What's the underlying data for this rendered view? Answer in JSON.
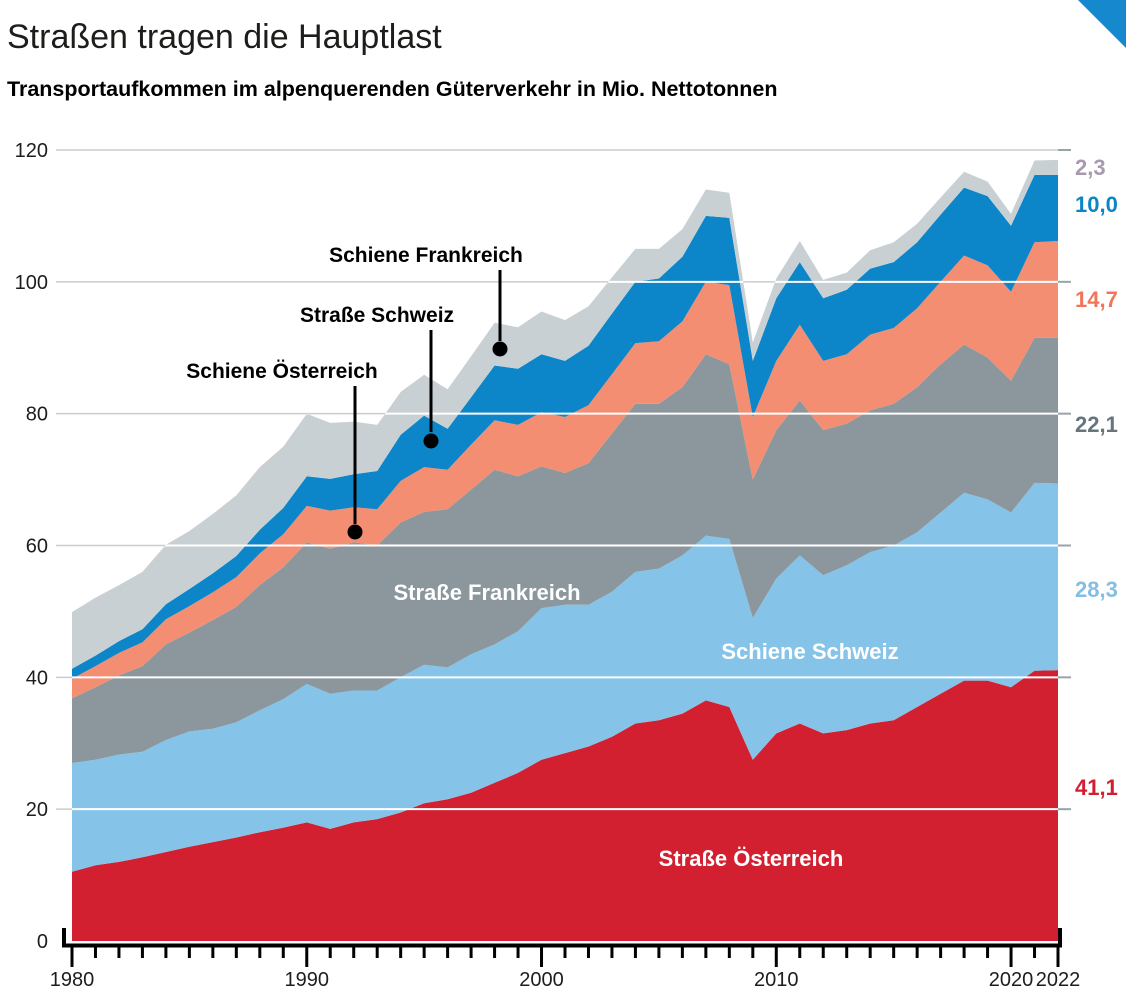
{
  "page": {
    "title": "Straßen tragen die Hauptlast",
    "subtitle": "Transportaufkommen im alpenquerenden Güterverkehr in Mio. Nettotonnen",
    "corner_accent_color": "#1688cd"
  },
  "chart_data": {
    "type": "area",
    "stacked": true,
    "title": "Straßen tragen die Hauptlast",
    "subtitle": "Transportaufkommen im alpenquerenden Güterverkehr in Mio. Nettotonnen",
    "unit": "Mio. Nettotonnen",
    "grid": "horizontal",
    "ylim": [
      0,
      120
    ],
    "xlim": [
      1980,
      2022
    ],
    "y_axis": {
      "ticks": [
        0,
        20,
        40,
        60,
        80,
        100,
        120
      ]
    },
    "x_axis": {
      "labeled_ticks": [
        1980,
        1990,
        2000,
        2010,
        2020,
        2022
      ],
      "minor_tick_step": 1
    },
    "x": [
      1980,
      1981,
      1982,
      1983,
      1984,
      1985,
      1986,
      1987,
      1988,
      1989,
      1990,
      1991,
      1992,
      1993,
      1994,
      1995,
      1996,
      1997,
      1998,
      1999,
      2000,
      2001,
      2002,
      2003,
      2004,
      2005,
      2006,
      2007,
      2008,
      2009,
      2010,
      2011,
      2012,
      2013,
      2014,
      2015,
      2016,
      2017,
      2018,
      2019,
      2020,
      2021,
      2022
    ],
    "series": [
      {
        "name": "Straße Österreich",
        "color": "#d22030",
        "label_color": "#d11f2f",
        "end_label": "41,1",
        "values": [
          10.5,
          11.5,
          12.0,
          12.7,
          13.5,
          14.3,
          15.0,
          15.7,
          16.5,
          17.2,
          18.0,
          17.0,
          18.0,
          18.5,
          19.5,
          20.9,
          21.5,
          22.5,
          24.0,
          25.5,
          27.5,
          28.5,
          29.5,
          31.0,
          33.0,
          33.5,
          34.5,
          36.5,
          35.5,
          27.5,
          31.5,
          33.0,
          31.5,
          32.0,
          33.0,
          33.5,
          35.5,
          37.5,
          39.5,
          39.5,
          38.5,
          41.0,
          41.1
        ]
      },
      {
        "name": "Schiene Schweiz",
        "color": "#85c3e8",
        "label_color": "#84bee3",
        "end_label": "28,3",
        "values": [
          16.5,
          16.0,
          16.3,
          16.0,
          17.0,
          17.5,
          17.2,
          17.5,
          18.5,
          19.5,
          21.0,
          20.5,
          20.0,
          19.5,
          20.5,
          21.0,
          20.0,
          21.0,
          21.0,
          21.5,
          23.0,
          22.5,
          21.5,
          22.0,
          23.0,
          23.0,
          24.0,
          25.0,
          25.5,
          21.5,
          23.5,
          25.5,
          24.0,
          25.0,
          26.0,
          26.5,
          26.5,
          27.5,
          28.5,
          27.5,
          26.5,
          28.5,
          28.3
        ]
      },
      {
        "name": "Straße Frankreich",
        "color": "#8b979c",
        "label_color": "#66767c",
        "end_label": "22,1",
        "values": [
          9.8,
          11.0,
          12.0,
          13.0,
          14.5,
          15.0,
          16.5,
          17.5,
          19.0,
          20.0,
          21.5,
          22.0,
          22.5,
          22.0,
          23.5,
          23.2,
          24.0,
          25.0,
          26.5,
          23.5,
          21.5,
          20.0,
          21.5,
          24.0,
          25.5,
          25.0,
          25.5,
          27.5,
          26.5,
          21.0,
          22.5,
          23.5,
          22.0,
          21.5,
          21.5,
          21.5,
          22.0,
          22.5,
          22.5,
          21.5,
          20.0,
          22.0,
          22.1
        ]
      },
      {
        "name": "Schiene Österreich",
        "color": "#f38e72",
        "label_color": "#f0765b",
        "end_label": "14,7",
        "values": [
          3.0,
          3.2,
          3.4,
          3.6,
          3.8,
          4.0,
          4.2,
          4.5,
          4.8,
          5.0,
          5.5,
          5.8,
          5.3,
          5.5,
          6.3,
          6.8,
          6.0,
          6.8,
          7.5,
          7.8,
          8.2,
          8.5,
          8.8,
          9.0,
          9.2,
          9.5,
          10.0,
          11.0,
          12.0,
          9.5,
          10.5,
          11.5,
          10.5,
          10.5,
          11.5,
          11.5,
          12.0,
          12.5,
          13.5,
          14.0,
          13.5,
          14.5,
          14.7
        ]
      },
      {
        "name": "Straße Schweiz",
        "color": "#0c86c8",
        "label_color": "#0d85c5",
        "end_label": "10,0",
        "values": [
          1.5,
          1.6,
          1.8,
          2.0,
          2.3,
          2.6,
          2.9,
          3.2,
          3.6,
          4.0,
          4.5,
          4.8,
          5.0,
          5.8,
          7.0,
          7.8,
          6.2,
          7.2,
          8.3,
          8.5,
          8.8,
          8.5,
          9.0,
          9.2,
          9.3,
          9.5,
          9.8,
          10.0,
          10.2,
          8.5,
          9.5,
          9.5,
          9.5,
          9.8,
          10.0,
          10.0,
          10.0,
          10.2,
          10.3,
          10.5,
          10.0,
          10.2,
          10.0
        ]
      },
      {
        "name": "Schiene Frankreich",
        "color": "#c9d0d3",
        "label_color": "#a89aae",
        "end_label": "2,3",
        "values": [
          8.6,
          8.8,
          8.5,
          8.7,
          9.0,
          8.8,
          9.0,
          9.2,
          9.5,
          9.3,
          9.5,
          8.5,
          8.0,
          7.0,
          6.5,
          6.2,
          6.0,
          6.2,
          6.5,
          6.3,
          6.5,
          6.2,
          6.0,
          5.5,
          5.0,
          4.5,
          4.2,
          4.0,
          3.8,
          2.8,
          3.0,
          3.2,
          2.8,
          2.6,
          2.8,
          3.0,
          2.8,
          2.6,
          2.4,
          2.2,
          1.8,
          2.2,
          2.3
        ]
      }
    ],
    "annotations": [
      {
        "text": "Schiene Österreich",
        "year": 1992,
        "value": 62.0
      },
      {
        "text": "Straße Schweiz",
        "year": 1995,
        "value": 75.9
      },
      {
        "text": "Schiene Frankreich",
        "year": 1998,
        "value": 89.8
      }
    ]
  }
}
